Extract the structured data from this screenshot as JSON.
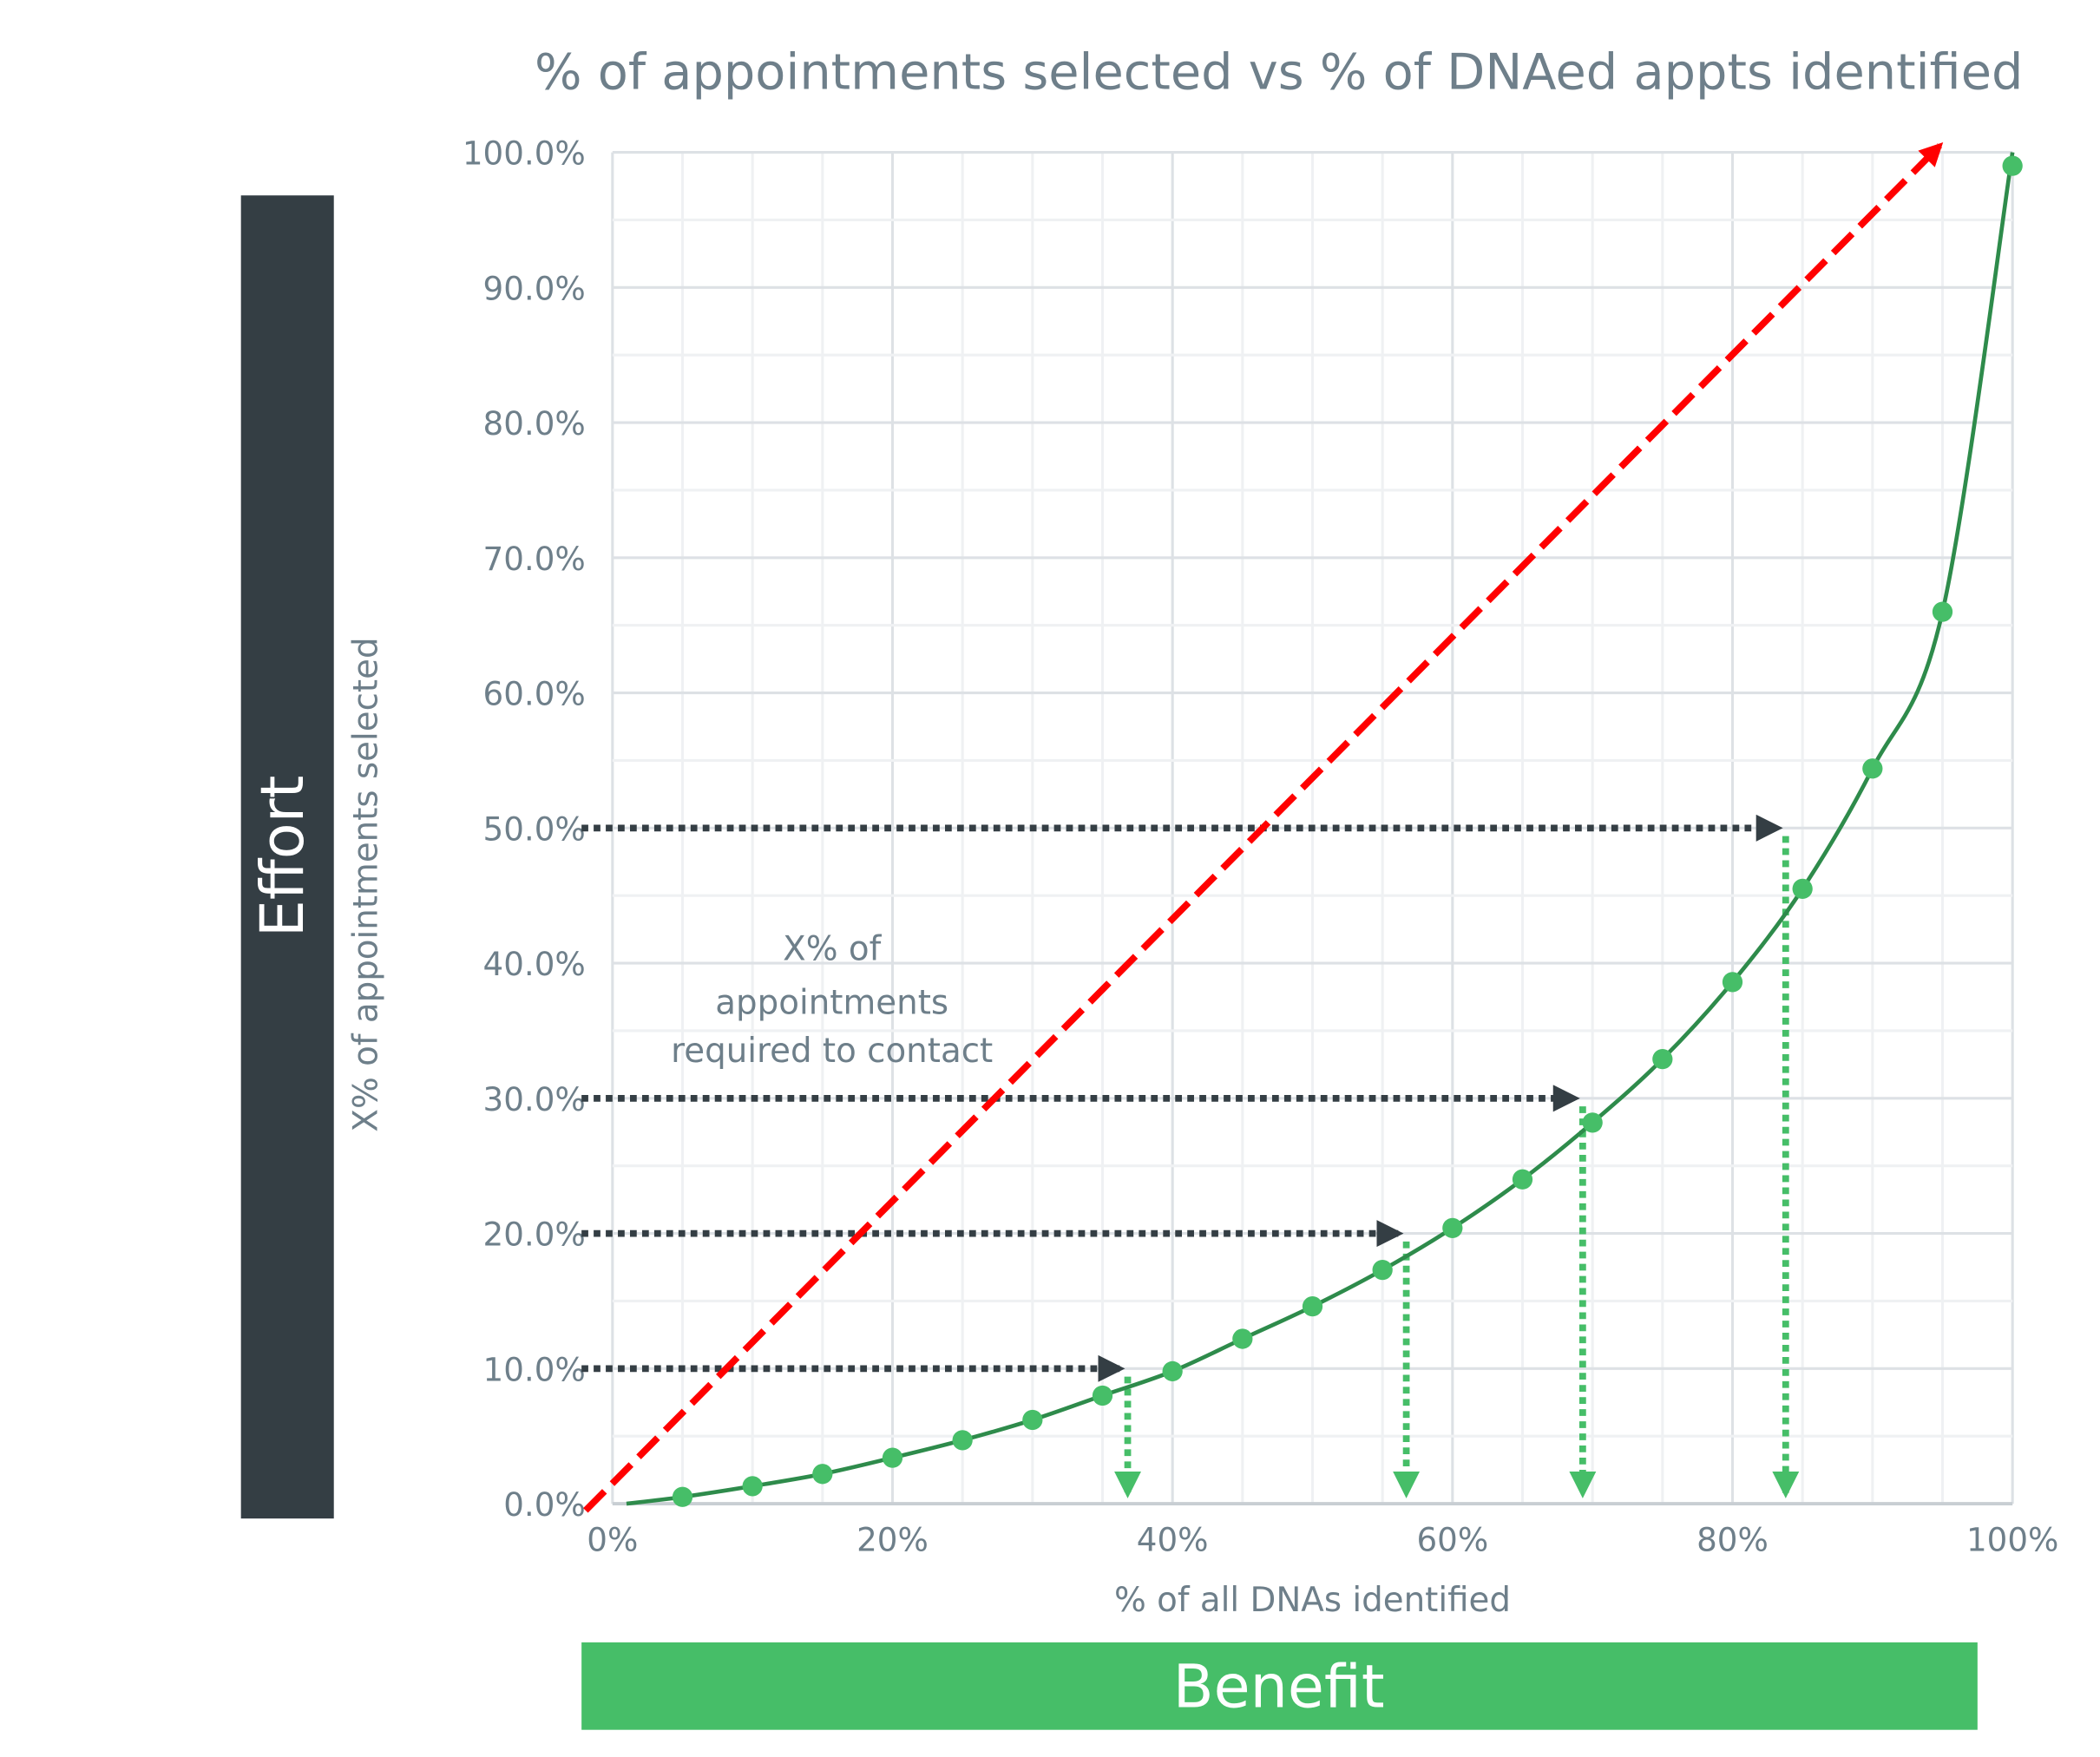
{
  "chart_data": {
    "type": "scatter",
    "title": "% of appointments selected vs % of DNAed appts identified",
    "xlabel": "% of all DNAs identified",
    "ylabel": "X% of appointments selected",
    "xlim": [
      0,
      100
    ],
    "ylim": [
      0,
      100
    ],
    "x_ticks": [
      "0%",
      "20%",
      "40%",
      "60%",
      "80%",
      "100%"
    ],
    "y_ticks": [
      "0.0%",
      "10.0%",
      "20.0%",
      "30.0%",
      "40.0%",
      "50.0%",
      "60.0%",
      "70.0%",
      "80.0%",
      "90.0%",
      "100.0%"
    ],
    "grid": true,
    "points": {
      "x": [
        5,
        10,
        15,
        20,
        25,
        30,
        35,
        40,
        45,
        50,
        55,
        60,
        65,
        70,
        75,
        80,
        85,
        90,
        95,
        100
      ],
      "y": [
        0.5,
        1.3,
        2.2,
        3.4,
        4.7,
        6.2,
        8.0,
        9.8,
        12.2,
        14.6,
        17.3,
        20.4,
        24.0,
        28.2,
        32.9,
        38.6,
        45.5,
        54.4,
        66.0,
        99.0
      ]
    },
    "trend_line": {
      "type": "smooth",
      "color": "#2e8b4b"
    },
    "reference_line": {
      "from": [
        0,
        0
      ],
      "to": [
        95,
        100
      ],
      "style": "dashed-arrow",
      "color": "#ff0000"
    },
    "guides": [
      {
        "y": 10,
        "x": 36.8
      },
      {
        "y": 20,
        "x": 56.7
      },
      {
        "y": 30,
        "x": 69.3
      },
      {
        "y": 50,
        "x": 83.8
      }
    ],
    "annotation": [
      "X% of",
      "appointments",
      "required to contact"
    ],
    "colors": {
      "points": "#46be68",
      "guide_horizontal": "#343e44",
      "guide_vertical": "#46be68",
      "effort": "#343e44",
      "benefit": "#46be68",
      "text": "#6e7f8a"
    }
  },
  "side_labels": {
    "effort": "Effort",
    "benefit": "Benefit"
  }
}
